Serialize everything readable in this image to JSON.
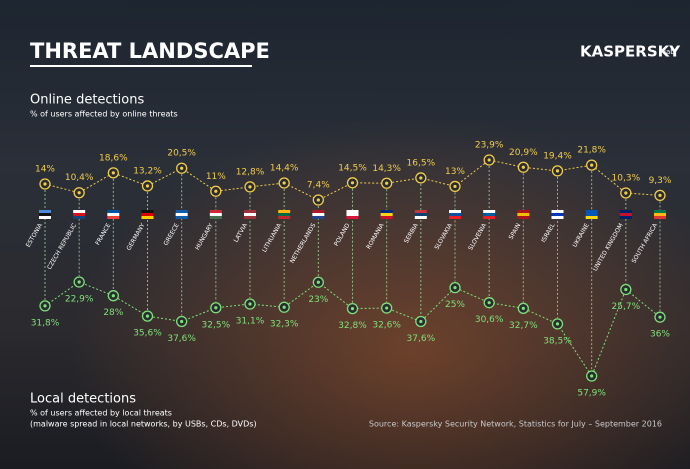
{
  "chart_data": {
    "type": "line",
    "title": "THREAT LANDSCAPE",
    "brand": "KASPERSKY",
    "brand_suffix": "lab",
    "categories": [
      "ESTONIA",
      "CZECH REPUBLIC",
      "FRANCE",
      "GERMANY",
      "GREECE",
      "HUNGARY",
      "LATVIA",
      "LITHUANIA",
      "NETHERLANDS",
      "POLAND",
      "ROMANIA",
      "SERBIA",
      "SLOVAKIA",
      "SLOVENIA",
      "SPAIN",
      "ISRAEL",
      "UKRAINE",
      "UNITED KINGDOM",
      "SOUTH AFRICA"
    ],
    "series": [
      {
        "name": "Online detections",
        "color": "#f2cc4a",
        "subtitle": "% of users affected by online threats",
        "values": [
          14,
          10.4,
          18.6,
          13.2,
          20.5,
          11,
          12.8,
          14.4,
          7.4,
          14.5,
          14.3,
          16.5,
          13,
          23.9,
          20.9,
          19.4,
          21.8,
          10.3,
          9.3
        ],
        "value_labels": [
          "14%",
          "10,4%",
          "18,6%",
          "13,2%",
          "20,5%",
          "11%",
          "12,8%",
          "14,4%",
          "7,4%",
          "14,5%",
          "14,3%",
          "16,5%",
          "13%",
          "23,9%",
          "20,9%",
          "19,4%",
          "21,8%",
          "10,3%",
          "9,3%"
        ]
      },
      {
        "name": "Local detections",
        "color": "#7ee07a",
        "subtitle": "% of users affected by local threats",
        "note": "(malware spread in local networks, by USBs, CDs, DVDs)",
        "values": [
          31.8,
          22.9,
          28,
          35.6,
          37.6,
          32.5,
          31.1,
          32.3,
          23,
          32.8,
          32.6,
          37.6,
          25,
          30.6,
          32.7,
          38.5,
          57.9,
          25.7,
          36
        ],
        "value_labels": [
          "31,8%",
          "22,9%",
          "28%",
          "35,6%",
          "37,6%",
          "32,5%",
          "31,1%",
          "32,3%",
          "23%",
          "32,8%",
          "32,6%",
          "37,6%",
          "25%",
          "30,6%",
          "32,7%",
          "38,5%",
          "57,9%",
          "25,7%",
          "36%"
        ]
      }
    ],
    "source": "Source: Kaspersky Security Network, Statistics for July – September 2016"
  }
}
